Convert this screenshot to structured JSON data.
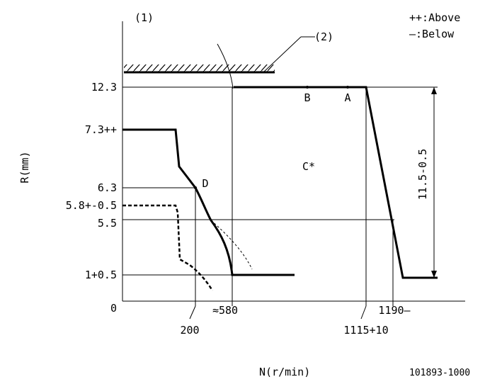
{
  "figure_no": "(1)",
  "callout_2": "(2)",
  "legend": {
    "above": "++:Above",
    "below": "—:Below"
  },
  "y_axis_title": "R(mm)",
  "x_axis_title": "N(r/min)",
  "y_ticks": [
    "12.3",
    "7.3++",
    "6.3",
    "5.8+-0.5",
    "5.5",
    "1+0.5",
    "0"
  ],
  "x_ticks": [
    "200",
    "≈580",
    "1115+10",
    "1190—"
  ],
  "points": [
    "A",
    "B",
    "C*",
    "D"
  ],
  "dimension_label": "11.5-0.5",
  "drawing_no": "101893-1000"
}
